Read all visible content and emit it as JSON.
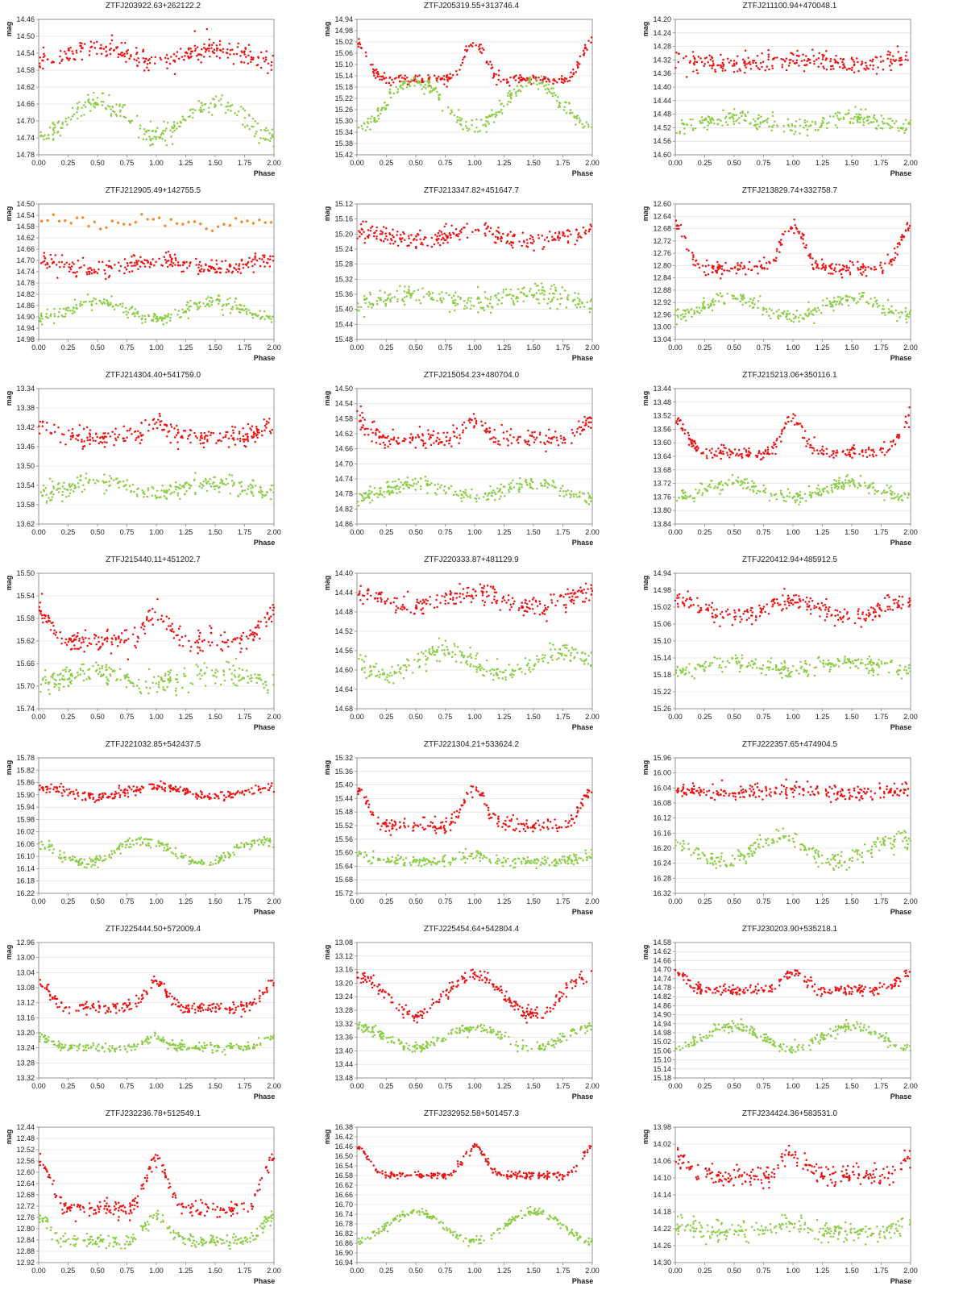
{
  "colors": {
    "red": "#ee1111",
    "green": "#8ccc44",
    "orange": "#f08c2c",
    "frame": "#8a8a8a",
    "grid": "#d9d9d9"
  },
  "chart_data": [
    {
      "type": "scatter",
      "title": "ZTFJ203922.63+262122.2",
      "xlabel": "Phase",
      "ylabel": "mag",
      "xlim": [
        0,
        2
      ],
      "xticks": [
        0,
        0.25,
        0.5,
        0.75,
        1,
        1.25,
        1.5,
        1.75,
        2
      ],
      "ylim": [
        14.78,
        14.46
      ],
      "yticks": [
        14.46,
        14.5,
        14.54,
        14.58,
        14.62,
        14.66,
        14.7,
        14.74,
        14.78
      ],
      "series": [
        {
          "color": "red",
          "mean": 14.545,
          "amp": -0.015,
          "shape": "sin",
          "shift": 0.0,
          "scatter": 0.012
        },
        {
          "color": "green",
          "mean": 14.695,
          "amp": -0.04,
          "shape": "sin",
          "shift": 0.0,
          "scatter": 0.012
        }
      ]
    },
    {
      "type": "scatter",
      "title": "ZTFJ205319.55+313746.4",
      "xlabel": "Phase",
      "ylabel": "mag",
      "xlim": [
        0,
        2
      ],
      "xticks": [
        0,
        0.25,
        0.5,
        0.75,
        1,
        1.25,
        1.5,
        1.75,
        2
      ],
      "ylim": [
        15.42,
        14.94
      ],
      "yticks": [
        14.94,
        14.98,
        15.02,
        15.06,
        15.1,
        15.14,
        15.18,
        15.22,
        15.26,
        15.3,
        15.34,
        15.38,
        15.42
      ],
      "series": [
        {
          "color": "red",
          "mean": 15.09,
          "amp": 0.065,
          "shape": "peak",
          "shift": 0.0,
          "scatter": 0.01
        },
        {
          "color": "green",
          "mean": 15.24,
          "amp": -0.08,
          "shape": "sin",
          "shift": 0.0,
          "scatter": 0.012
        }
      ]
    },
    {
      "type": "scatter",
      "title": "ZTFJ211100.94+470048.1",
      "xlabel": "Phase",
      "ylabel": "mag",
      "xlim": [
        0,
        2
      ],
      "xticks": [
        0,
        0.25,
        0.5,
        0.75,
        1,
        1.25,
        1.5,
        1.75,
        2
      ],
      "ylim": [
        14.6,
        14.2
      ],
      "yticks": [
        14.2,
        14.24,
        14.28,
        14.32,
        14.36,
        14.4,
        14.44,
        14.48,
        14.52,
        14.56,
        14.6
      ],
      "series": [
        {
          "color": "red",
          "mean": 14.325,
          "amp": 0.008,
          "shape": "sin",
          "shift": 0.0,
          "scatter": 0.015
        },
        {
          "color": "green",
          "mean": 14.505,
          "amp": -0.015,
          "shape": "sin",
          "shift": 0.0,
          "scatter": 0.012
        }
      ]
    },
    {
      "type": "scatter",
      "title": "ZTFJ212905.49+142755.5",
      "xlabel": "Phase",
      "ylabel": "mag",
      "xlim": [
        0,
        2
      ],
      "xticks": [
        0,
        0.25,
        0.5,
        0.75,
        1,
        1.25,
        1.5,
        1.75,
        2
      ],
      "ylim": [
        14.98,
        14.5
      ],
      "yticks": [
        14.5,
        14.54,
        14.58,
        14.62,
        14.66,
        14.7,
        14.74,
        14.78,
        14.82,
        14.86,
        14.9,
        14.94,
        14.98
      ],
      "series": [
        {
          "color": "orange",
          "mean": 14.565,
          "amp": 0.01,
          "shape": "sin",
          "shift": 0.0,
          "scatter": 0.01,
          "n": 40
        },
        {
          "color": "red",
          "mean": 14.715,
          "amp": 0.015,
          "shape": "sin",
          "shift": 0.0,
          "scatter": 0.014
        },
        {
          "color": "green",
          "mean": 14.875,
          "amp": -0.03,
          "shape": "sin",
          "shift": 0.0,
          "scatter": 0.012
        }
      ]
    },
    {
      "type": "scatter",
      "title": "ZTFJ213347.82+451647.7",
      "xlabel": "Phase",
      "ylabel": "mag",
      "xlim": [
        0,
        2
      ],
      "xticks": [
        0,
        0.25,
        0.5,
        0.75,
        1,
        1.25,
        1.5,
        1.75,
        2
      ],
      "ylim": [
        15.48,
        15.12
      ],
      "yticks": [
        15.12,
        15.16,
        15.2,
        15.24,
        15.28,
        15.32,
        15.36,
        15.4,
        15.44,
        15.48
      ],
      "series": [
        {
          "color": "red",
          "mean": 15.205,
          "amp": 0.012,
          "shape": "sin",
          "shift": 0.0,
          "scatter": 0.012
        },
        {
          "color": "green",
          "mean": 15.37,
          "amp": -0.012,
          "shape": "sin",
          "shift": 0.0,
          "scatter": 0.014
        }
      ]
    },
    {
      "type": "scatter",
      "title": "ZTFJ213829.74+332758.7",
      "xlabel": "Phase",
      "ylabel": "mag",
      "xlim": [
        0,
        2
      ],
      "xticks": [
        0,
        0.25,
        0.5,
        0.75,
        1,
        1.25,
        1.5,
        1.75,
        2
      ],
      "ylim": [
        13.04,
        12.6
      ],
      "yticks": [
        12.6,
        12.64,
        12.68,
        12.72,
        12.76,
        12.8,
        12.84,
        12.88,
        12.92,
        12.96,
        13.0,
        13.04
      ],
      "series": [
        {
          "color": "red",
          "mean": 12.74,
          "amp": 0.07,
          "shape": "peak",
          "shift": 0.0,
          "scatter": 0.012
        },
        {
          "color": "green",
          "mean": 12.935,
          "amp": -0.03,
          "shape": "sin",
          "shift": 0.0,
          "scatter": 0.012
        }
      ]
    },
    {
      "type": "scatter",
      "title": "ZTFJ214304.40+541759.0",
      "xlabel": "Phase",
      "ylabel": "mag",
      "xlim": [
        0,
        2
      ],
      "xticks": [
        0,
        0.25,
        0.5,
        0.75,
        1,
        1.25,
        1.5,
        1.75,
        2
      ],
      "ylim": [
        13.62,
        13.34
      ],
      "yticks": [
        13.34,
        13.38,
        13.42,
        13.46,
        13.5,
        13.54,
        13.58,
        13.62
      ],
      "series": [
        {
          "color": "red",
          "mean": 13.425,
          "amp": 0.015,
          "shape": "peak",
          "shift": 0.0,
          "scatter": 0.01
        },
        {
          "color": "green",
          "mean": 13.545,
          "amp": -0.012,
          "shape": "sin",
          "shift": 0.0,
          "scatter": 0.01
        }
      ]
    },
    {
      "type": "scatter",
      "title": "ZTFJ215054.23+480704.0",
      "xlabel": "Phase",
      "ylabel": "mag",
      "xlim": [
        0,
        2
      ],
      "xticks": [
        0,
        0.25,
        0.5,
        0.75,
        1,
        1.25,
        1.5,
        1.75,
        2
      ],
      "ylim": [
        14.86,
        14.5
      ],
      "yticks": [
        14.5,
        14.54,
        14.58,
        14.62,
        14.66,
        14.7,
        14.74,
        14.78,
        14.82,
        14.86
      ],
      "series": [
        {
          "color": "red",
          "mean": 14.61,
          "amp": 0.025,
          "shape": "peak",
          "shift": 0.0,
          "scatter": 0.012
        },
        {
          "color": "green",
          "mean": 14.77,
          "amp": -0.02,
          "shape": "sin",
          "shift": 0.0,
          "scatter": 0.01
        }
      ]
    },
    {
      "type": "scatter",
      "title": "ZTFJ215213.06+350116.1",
      "xlabel": "Phase",
      "ylabel": "mag",
      "xlim": [
        0,
        2
      ],
      "xticks": [
        0,
        0.25,
        0.5,
        0.75,
        1,
        1.25,
        1.5,
        1.75,
        2
      ],
      "ylim": [
        13.84,
        13.44
      ],
      "yticks": [
        13.44,
        13.48,
        13.52,
        13.56,
        13.6,
        13.64,
        13.68,
        13.72,
        13.76,
        13.8,
        13.84
      ],
      "series": [
        {
          "color": "red",
          "mean": 13.58,
          "amp": 0.05,
          "shape": "peak",
          "shift": 0.0,
          "scatter": 0.01
        },
        {
          "color": "green",
          "mean": 13.74,
          "amp": -0.02,
          "shape": "sin",
          "shift": 0.0,
          "scatter": 0.01
        }
      ]
    },
    {
      "type": "scatter",
      "title": "ZTFJ215440.11+451202.7",
      "xlabel": "Phase",
      "ylabel": "mag",
      "xlim": [
        0,
        2
      ],
      "xticks": [
        0,
        0.25,
        0.5,
        0.75,
        1,
        1.25,
        1.5,
        1.75,
        2
      ],
      "ylim": [
        15.74,
        15.5
      ],
      "yticks": [
        15.5,
        15.54,
        15.58,
        15.62,
        15.66,
        15.7,
        15.74
      ],
      "series": [
        {
          "color": "red",
          "mean": 15.595,
          "amp": 0.025,
          "shape": "peak",
          "shift": 0.0,
          "scatter": 0.01
        },
        {
          "color": "green",
          "mean": 15.685,
          "amp": -0.01,
          "shape": "sin",
          "shift": 0.0,
          "scatter": 0.01
        }
      ]
    },
    {
      "type": "scatter",
      "title": "ZTFJ220333.87+481129.9",
      "xlabel": "Phase",
      "ylabel": "mag",
      "xlim": [
        0,
        2
      ],
      "xticks": [
        0,
        0.25,
        0.5,
        0.75,
        1,
        1.25,
        1.5,
        1.75,
        2
      ],
      "ylim": [
        14.68,
        14.4
      ],
      "yticks": [
        14.4,
        14.44,
        14.48,
        14.52,
        14.56,
        14.6,
        14.64,
        14.68
      ],
      "series": [
        {
          "color": "red",
          "mean": 14.455,
          "amp": 0.015,
          "shape": "sin",
          "shift": 0.0,
          "scatter": 0.01
        },
        {
          "color": "green",
          "mean": 14.585,
          "amp": 0.025,
          "shape": "sin",
          "shift": 0.25,
          "scatter": 0.01
        }
      ]
    },
    {
      "type": "scatter",
      "title": "ZTFJ220412.94+485912.5",
      "xlabel": "Phase",
      "ylabel": "mag",
      "xlim": [
        0,
        2
      ],
      "xticks": [
        0,
        0.25,
        0.5,
        0.75,
        1,
        1.25,
        1.5,
        1.75,
        2
      ],
      "ylim": [
        15.26,
        14.94
      ],
      "yticks": [
        14.94,
        14.98,
        15.02,
        15.06,
        15.1,
        15.14,
        15.18,
        15.22,
        15.26
      ],
      "series": [
        {
          "color": "red",
          "mean": 15.025,
          "amp": 0.018,
          "shape": "sin",
          "shift": 0.0,
          "scatter": 0.01
        },
        {
          "color": "green",
          "mean": 15.16,
          "amp": -0.01,
          "shape": "sin",
          "shift": 0.0,
          "scatter": 0.01
        }
      ]
    },
    {
      "type": "scatter",
      "title": "ZTFJ221032.85+542437.5",
      "xlabel": "Phase",
      "ylabel": "mag",
      "xlim": [
        0,
        2
      ],
      "xticks": [
        0,
        0.25,
        0.5,
        0.75,
        1,
        1.25,
        1.5,
        1.75,
        2
      ],
      "ylim": [
        16.22,
        15.78
      ],
      "yticks": [
        15.78,
        15.82,
        15.86,
        15.9,
        15.94,
        15.98,
        16.02,
        16.06,
        16.1,
        16.14,
        16.18,
        16.22
      ],
      "series": [
        {
          "color": "red",
          "mean": 15.89,
          "amp": 0.015,
          "shape": "sin",
          "shift": 0.0,
          "scatter": 0.008
        },
        {
          "color": "green",
          "mean": 16.085,
          "amp": 0.035,
          "shape": "sin",
          "shift": 0.1,
          "scatter": 0.01
        }
      ]
    },
    {
      "type": "scatter",
      "title": "ZTFJ221304.21+533624.2",
      "xlabel": "Phase",
      "ylabel": "mag",
      "xlim": [
        0,
        2
      ],
      "xticks": [
        0,
        0.25,
        0.5,
        0.75,
        1,
        1.25,
        1.5,
        1.75,
        2
      ],
      "ylim": [
        15.72,
        15.32
      ],
      "yticks": [
        15.32,
        15.36,
        15.4,
        15.44,
        15.48,
        15.52,
        15.56,
        15.6,
        15.64,
        15.68,
        15.72
      ],
      "series": [
        {
          "color": "red",
          "mean": 15.465,
          "amp": 0.055,
          "shape": "peak",
          "shift": 0.0,
          "scatter": 0.01
        },
        {
          "color": "green",
          "mean": 15.615,
          "amp": 0.01,
          "shape": "peak",
          "shift": 0.0,
          "scatter": 0.008
        }
      ]
    },
    {
      "type": "scatter",
      "title": "ZTFJ222357.65+474904.5",
      "xlabel": "Phase",
      "ylabel": "mag",
      "xlim": [
        0,
        2
      ],
      "xticks": [
        0,
        0.25,
        0.5,
        0.75,
        1,
        1.25,
        1.5,
        1.75,
        2
      ],
      "ylim": [
        16.32,
        15.96
      ],
      "yticks": [
        15.96,
        16.0,
        16.04,
        16.08,
        16.12,
        16.16,
        16.2,
        16.24,
        16.28,
        16.32
      ],
      "series": [
        {
          "color": "red",
          "mean": 16.05,
          "amp": 0.005,
          "shape": "sin",
          "shift": 0.0,
          "scatter": 0.01
        },
        {
          "color": "green",
          "mean": 16.205,
          "amp": 0.03,
          "shape": "sin",
          "shift": 0.1,
          "scatter": 0.012
        }
      ]
    },
    {
      "type": "scatter",
      "title": "ZTFJ225444.50+572009.4",
      "xlabel": "Phase",
      "ylabel": "mag",
      "xlim": [
        0,
        2
      ],
      "xticks": [
        0,
        0.25,
        0.5,
        0.75,
        1,
        1.25,
        1.5,
        1.75,
        2
      ],
      "ylim": [
        13.32,
        12.96
      ],
      "yticks": [
        12.96,
        13.0,
        13.04,
        13.08,
        13.12,
        13.16,
        13.2,
        13.24,
        13.28,
        13.32
      ],
      "series": [
        {
          "color": "red",
          "mean": 13.1,
          "amp": 0.035,
          "shape": "peak",
          "shift": 0.0,
          "scatter": 0.008
        },
        {
          "color": "green",
          "mean": 13.225,
          "amp": 0.015,
          "shape": "peak",
          "shift": 0.0,
          "scatter": 0.006
        }
      ]
    },
    {
      "type": "scatter",
      "title": "ZTFJ225454.64+542804.4",
      "xlabel": "Phase",
      "ylabel": "mag",
      "xlim": [
        0,
        2
      ],
      "xticks": [
        0,
        0.25,
        0.5,
        0.75,
        1,
        1.25,
        1.5,
        1.75,
        2
      ],
      "ylim": [
        13.48,
        13.08
      ],
      "yticks": [
        13.08,
        13.12,
        13.16,
        13.2,
        13.24,
        13.28,
        13.32,
        13.36,
        13.4,
        13.44,
        13.48
      ],
      "series": [
        {
          "color": "red",
          "mean": 13.235,
          "amp": 0.06,
          "shape": "sin",
          "shift": 0.0,
          "scatter": 0.01
        },
        {
          "color": "green",
          "mean": 13.36,
          "amp": 0.03,
          "shape": "sin",
          "shift": 0.0,
          "scatter": 0.008
        }
      ]
    },
    {
      "type": "scatter",
      "title": "ZTFJ230203.90+535218.1",
      "xlabel": "Phase",
      "ylabel": "mag",
      "xlim": [
        0,
        2
      ],
      "xticks": [
        0,
        0.25,
        0.5,
        0.75,
        1,
        1.25,
        1.5,
        1.75,
        2
      ],
      "ylim": [
        15.18,
        14.58
      ],
      "yticks": [
        14.58,
        14.62,
        14.66,
        14.7,
        14.74,
        14.78,
        14.82,
        14.86,
        14.9,
        14.94,
        14.98,
        15.02,
        15.06,
        15.1,
        15.14,
        15.18
      ],
      "series": [
        {
          "color": "red",
          "mean": 14.75,
          "amp": 0.04,
          "shape": "peak",
          "shift": 0.0,
          "scatter": 0.012
        },
        {
          "color": "green",
          "mean": 15.0,
          "amp": -0.05,
          "shape": "sin",
          "shift": 0.0,
          "scatter": 0.012
        }
      ]
    },
    {
      "type": "scatter",
      "title": "ZTFJ232236.78+512549.1",
      "xlabel": "Phase",
      "ylabel": "mag",
      "xlim": [
        0,
        2
      ],
      "xticks": [
        0,
        0.25,
        0.5,
        0.75,
        1,
        1.25,
        1.5,
        1.75,
        2
      ],
      "ylim": [
        12.92,
        12.44
      ],
      "yticks": [
        12.44,
        12.48,
        12.52,
        12.56,
        12.6,
        12.64,
        12.68,
        12.72,
        12.76,
        12.8,
        12.84,
        12.88,
        12.92
      ],
      "series": [
        {
          "color": "red",
          "mean": 12.64,
          "amp": 0.09,
          "shape": "peak",
          "shift": 0.0,
          "scatter": 0.014
        },
        {
          "color": "green",
          "mean": 12.8,
          "amp": 0.045,
          "shape": "peak",
          "shift": 0.0,
          "scatter": 0.012
        }
      ]
    },
    {
      "type": "scatter",
      "title": "ZTFJ232952.58+501457.3",
      "xlabel": "Phase",
      "ylabel": "mag",
      "xlim": [
        0,
        2
      ],
      "xticks": [
        0,
        0.25,
        0.5,
        0.75,
        1,
        1.25,
        1.5,
        1.75,
        2
      ],
      "ylim": [
        16.94,
        16.38
      ],
      "yticks": [
        16.38,
        16.42,
        16.46,
        16.5,
        16.54,
        16.58,
        16.62,
        16.66,
        16.7,
        16.74,
        16.78,
        16.82,
        16.86,
        16.9,
        16.94
      ],
      "series": [
        {
          "color": "red",
          "mean": 16.52,
          "amp": 0.06,
          "shape": "peak",
          "shift": 0.0,
          "scatter": 0.008
        },
        {
          "color": "green",
          "mean": 16.79,
          "amp": -0.06,
          "shape": "sin",
          "shift": 0.0,
          "scatter": 0.008
        }
      ]
    },
    {
      "type": "scatter",
      "title": "ZTFJ234424.36+583531.0",
      "xlabel": "Phase",
      "ylabel": "mag",
      "xlim": [
        0,
        2
      ],
      "xticks": [
        0,
        0.25,
        0.5,
        0.75,
        1,
        1.25,
        1.5,
        1.75,
        2
      ],
      "ylim": [
        14.3,
        13.98
      ],
      "yticks": [
        13.98,
        14.02,
        14.06,
        14.1,
        14.14,
        14.18,
        14.22,
        14.26,
        14.3
      ],
      "series": [
        {
          "color": "red",
          "mean": 14.07,
          "amp": 0.025,
          "shape": "peak",
          "shift": 0.0,
          "scatter": 0.012
        },
        {
          "color": "green",
          "mean": 14.215,
          "amp": 0.012,
          "shape": "peak",
          "shift": 0.0,
          "scatter": 0.012
        }
      ]
    }
  ]
}
